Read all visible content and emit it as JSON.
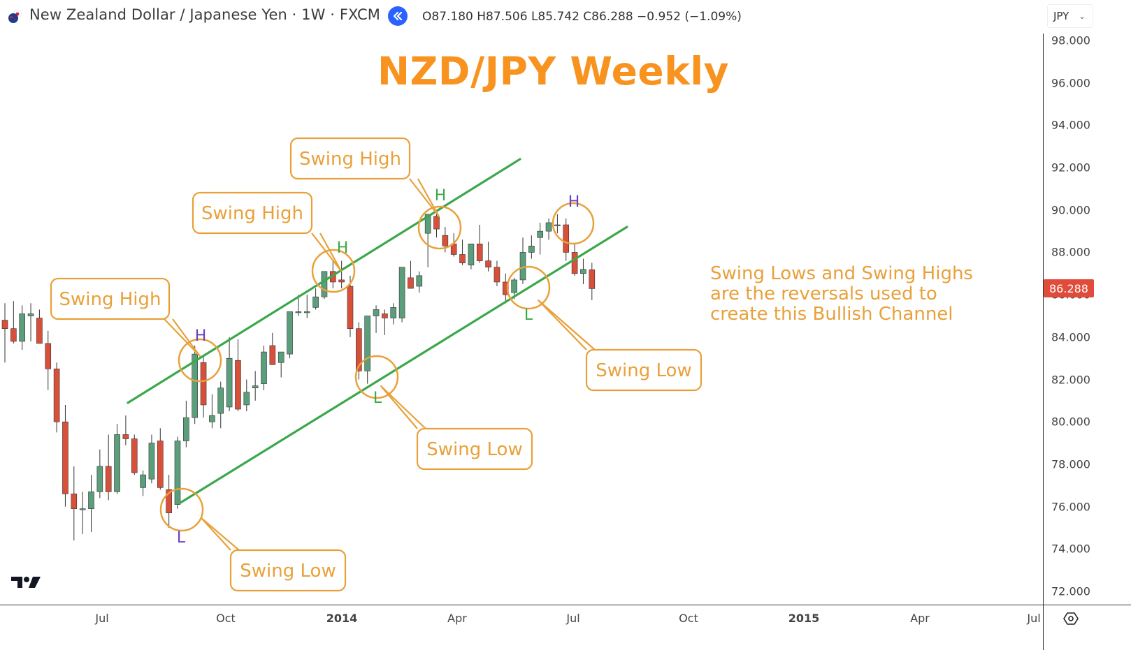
{
  "header": {
    "symbol_title": "New Zealand Dollar / Japanese Yen · 1W · FXCM",
    "ohlc": {
      "open_label": "O",
      "open": "87.180",
      "high_label": "H",
      "high": "87.506",
      "low_label": "L",
      "low": "85.742",
      "close_label": "C",
      "close": "86.288",
      "change": "−0.952",
      "change_pct": "(−1.09%)"
    },
    "ohlc_text": "O87.180 H87.506 L85.742 C86.288 −0.952 (−1.09%)",
    "currency": "JPY",
    "icons": {
      "flag": "nz-jp-flag-icon",
      "replay": "replay-rewind-icon",
      "currency_dropdown": "chevron-down-icon",
      "settings": "settings-hexagon-icon",
      "logo": "tradingview-logo-icon"
    }
  },
  "price_axis": {
    "labels": [
      "98.000",
      "96.000",
      "94.000",
      "92.000",
      "90.000",
      "88.000",
      "86.000",
      "84.000",
      "82.000",
      "80.000",
      "78.000",
      "76.000",
      "74.000",
      "72.000"
    ],
    "last_price": "86.288",
    "last_price_color": "#e04b3a"
  },
  "time_axis": {
    "labels": [
      "Jul",
      "Oct",
      "2014",
      "Apr",
      "Jul",
      "Oct",
      "2015",
      "Apr",
      "Jul"
    ]
  },
  "chart_title": "NZD/JPY Weekly",
  "annotation_text": "Swing Lows and Swing Highs\nare the reversals used to\ncreate this Bullish Channel",
  "callouts": [
    {
      "label": "Swing High",
      "marker": "H"
    },
    {
      "label": "Swing High",
      "marker": "H"
    },
    {
      "label": "Swing High",
      "marker": "H"
    },
    {
      "label": "Swing Low",
      "marker": "L"
    },
    {
      "label": "Swing Low",
      "marker": "L"
    },
    {
      "label": "Swing Low",
      "marker": "L"
    }
  ],
  "colors": {
    "up": "#5b9e7c",
    "down": "#d9503a",
    "channel": "#3aa84a",
    "callout": "#e8a13a",
    "title": "#f7931e",
    "marker_purple": "#6a3fc0",
    "marker_green": "#3aa84a"
  },
  "chart_data": {
    "type": "candlestick",
    "title": "NZD/JPY Weekly",
    "xlabel": "",
    "ylabel": "JPY",
    "ylim": [
      72,
      98
    ],
    "grid": false,
    "x_ticks": [
      "Jul",
      "Oct",
      "2014",
      "Apr",
      "Jul",
      "Oct",
      "2015",
      "Apr",
      "Jul"
    ],
    "y_ticks": [
      98,
      96,
      94,
      92,
      90,
      88,
      86,
      84,
      82,
      80,
      78,
      76,
      74,
      72
    ],
    "candles": [
      {
        "o": 84.8,
        "h": 85.6,
        "l": 82.8,
        "c": 84.4
      },
      {
        "o": 84.4,
        "h": 85.7,
        "l": 83.7,
        "c": 83.8
      },
      {
        "o": 83.8,
        "h": 85.5,
        "l": 83.4,
        "c": 85.1
      },
      {
        "o": 85.0,
        "h": 85.6,
        "l": 83.8,
        "c": 85.1
      },
      {
        "o": 84.9,
        "h": 85.3,
        "l": 83.8,
        "c": 83.7
      },
      {
        "o": 83.7,
        "h": 84.3,
        "l": 81.5,
        "c": 82.5
      },
      {
        "o": 82.5,
        "h": 82.8,
        "l": 79.5,
        "c": 80.0
      },
      {
        "o": 80.0,
        "h": 80.8,
        "l": 76.0,
        "c": 76.6
      },
      {
        "o": 76.6,
        "h": 77.9,
        "l": 74.4,
        "c": 75.9
      },
      {
        "o": 75.9,
        "h": 76.7,
        "l": 74.7,
        "c": 75.9
      },
      {
        "o": 75.9,
        "h": 77.5,
        "l": 74.8,
        "c": 76.7
      },
      {
        "o": 76.7,
        "h": 78.7,
        "l": 76.4,
        "c": 77.9
      },
      {
        "o": 77.9,
        "h": 79.4,
        "l": 76.3,
        "c": 76.7
      },
      {
        "o": 76.7,
        "h": 79.9,
        "l": 76.6,
        "c": 79.4
      },
      {
        "o": 79.4,
        "h": 80.3,
        "l": 78.9,
        "c": 79.2
      },
      {
        "o": 79.2,
        "h": 79.4,
        "l": 77.5,
        "c": 77.6
      },
      {
        "o": 76.9,
        "h": 77.7,
        "l": 76.5,
        "c": 77.5
      },
      {
        "o": 77.3,
        "h": 79.4,
        "l": 77.1,
        "c": 79.0
      },
      {
        "o": 79.1,
        "h": 79.7,
        "l": 76.8,
        "c": 76.9
      },
      {
        "o": 76.8,
        "h": 77.5,
        "l": 75.0,
        "c": 75.7
      },
      {
        "o": 76.1,
        "h": 79.3,
        "l": 75.9,
        "c": 79.1
      },
      {
        "o": 79.1,
        "h": 81.0,
        "l": 78.8,
        "c": 80.2
      },
      {
        "o": 80.2,
        "h": 83.6,
        "l": 79.9,
        "c": 83.2
      },
      {
        "o": 82.8,
        "h": 83.1,
        "l": 80.2,
        "c": 80.8
      },
      {
        "o": 80.0,
        "h": 81.3,
        "l": 79.7,
        "c": 80.3
      },
      {
        "o": 80.4,
        "h": 81.9,
        "l": 79.7,
        "c": 81.6
      },
      {
        "o": 80.7,
        "h": 84.0,
        "l": 80.5,
        "c": 83.0
      },
      {
        "o": 82.9,
        "h": 83.9,
        "l": 80.5,
        "c": 80.6
      },
      {
        "o": 80.8,
        "h": 82.0,
        "l": 80.5,
        "c": 81.4
      },
      {
        "o": 81.6,
        "h": 82.4,
        "l": 81.0,
        "c": 81.7
      },
      {
        "o": 81.8,
        "h": 83.6,
        "l": 81.5,
        "c": 83.3
      },
      {
        "o": 83.6,
        "h": 84.2,
        "l": 82.7,
        "c": 82.7
      },
      {
        "o": 82.8,
        "h": 83.3,
        "l": 82.1,
        "c": 83.3
      },
      {
        "o": 83.2,
        "h": 85.2,
        "l": 83.0,
        "c": 85.2
      },
      {
        "o": 85.2,
        "h": 86.0,
        "l": 85.0,
        "c": 85.2
      },
      {
        "o": 85.2,
        "h": 86.0,
        "l": 84.9,
        "c": 85.2
      },
      {
        "o": 85.4,
        "h": 86.3,
        "l": 85.3,
        "c": 85.9
      },
      {
        "o": 85.9,
        "h": 87.0,
        "l": 85.8,
        "c": 87.1
      },
      {
        "o": 87.1,
        "h": 87.8,
        "l": 86.3,
        "c": 86.6
      },
      {
        "o": 86.7,
        "h": 87.6,
        "l": 86.3,
        "c": 86.6
      },
      {
        "o": 86.4,
        "h": 86.9,
        "l": 84.0,
        "c": 84.4
      },
      {
        "o": 84.4,
        "h": 84.7,
        "l": 82.0,
        "c": 82.4
      },
      {
        "o": 82.4,
        "h": 85.0,
        "l": 81.8,
        "c": 85.0
      },
      {
        "o": 85.0,
        "h": 85.5,
        "l": 84.2,
        "c": 85.3
      },
      {
        "o": 85.1,
        "h": 85.3,
        "l": 84.1,
        "c": 84.9
      },
      {
        "o": 84.9,
        "h": 85.6,
        "l": 84.6,
        "c": 85.4
      },
      {
        "o": 84.9,
        "h": 87.3,
        "l": 84.7,
        "c": 87.3
      },
      {
        "o": 86.8,
        "h": 87.6,
        "l": 86.5,
        "c": 86.3
      },
      {
        "o": 86.4,
        "h": 87.1,
        "l": 86.1,
        "c": 86.9
      },
      {
        "o": 88.9,
        "h": 89.4,
        "l": 87.3,
        "c": 89.8
      },
      {
        "o": 89.7,
        "h": 90.0,
        "l": 88.7,
        "c": 89.1
      },
      {
        "o": 88.8,
        "h": 89.2,
        "l": 88.0,
        "c": 88.3
      },
      {
        "o": 88.4,
        "h": 88.9,
        "l": 87.8,
        "c": 87.9
      },
      {
        "o": 87.9,
        "h": 88.6,
        "l": 87.4,
        "c": 87.5
      },
      {
        "o": 87.4,
        "h": 88.3,
        "l": 87.2,
        "c": 88.4
      },
      {
        "o": 88.4,
        "h": 89.3,
        "l": 87.5,
        "c": 87.6
      },
      {
        "o": 87.6,
        "h": 88.5,
        "l": 87.1,
        "c": 87.3
      },
      {
        "o": 87.3,
        "h": 87.6,
        "l": 86.4,
        "c": 86.6
      },
      {
        "o": 86.6,
        "h": 87.0,
        "l": 85.6,
        "c": 86.0
      },
      {
        "o": 86.1,
        "h": 86.8,
        "l": 85.8,
        "c": 86.7
      },
      {
        "o": 86.7,
        "h": 88.7,
        "l": 86.5,
        "c": 88.0
      },
      {
        "o": 88.0,
        "h": 88.8,
        "l": 87.7,
        "c": 88.3
      },
      {
        "o": 88.7,
        "h": 89.4,
        "l": 87.9,
        "c": 89.0
      },
      {
        "o": 89.0,
        "h": 89.6,
        "l": 88.6,
        "c": 89.4
      },
      {
        "o": 89.3,
        "h": 89.8,
        "l": 88.9,
        "c": 89.3
      },
      {
        "o": 89.3,
        "h": 89.6,
        "l": 87.6,
        "c": 88.0
      },
      {
        "o": 88.0,
        "h": 88.4,
        "l": 86.9,
        "c": 87.0
      },
      {
        "o": 87.0,
        "h": 87.7,
        "l": 86.5,
        "c": 87.2
      },
      {
        "o": 87.18,
        "h": 87.506,
        "l": 85.742,
        "c": 86.288
      }
    ],
    "channel_lines": [
      {
        "name": "upper",
        "from": {
          "x": 183,
          "price": 80.9
        },
        "to": {
          "x": 744,
          "price": 92.4
        }
      },
      {
        "name": "lower",
        "from": {
          "x": 259,
          "price": 76.2
        },
        "to": {
          "x": 897,
          "price": 89.2
        }
      }
    ],
    "annotations": [
      {
        "text": "Swing High",
        "marker": "H"
      },
      {
        "text": "Swing High",
        "marker": "H"
      },
      {
        "text": "Swing High",
        "marker": "H"
      },
      {
        "text": "Swing Low",
        "marker": "L"
      },
      {
        "text": "Swing Low",
        "marker": "L"
      },
      {
        "text": "Swing Low",
        "marker": "L"
      },
      {
        "text": "Swing Lows and Swing Highs are the reversals used to create this Bullish Channel"
      }
    ],
    "last_price": 86.288
  }
}
